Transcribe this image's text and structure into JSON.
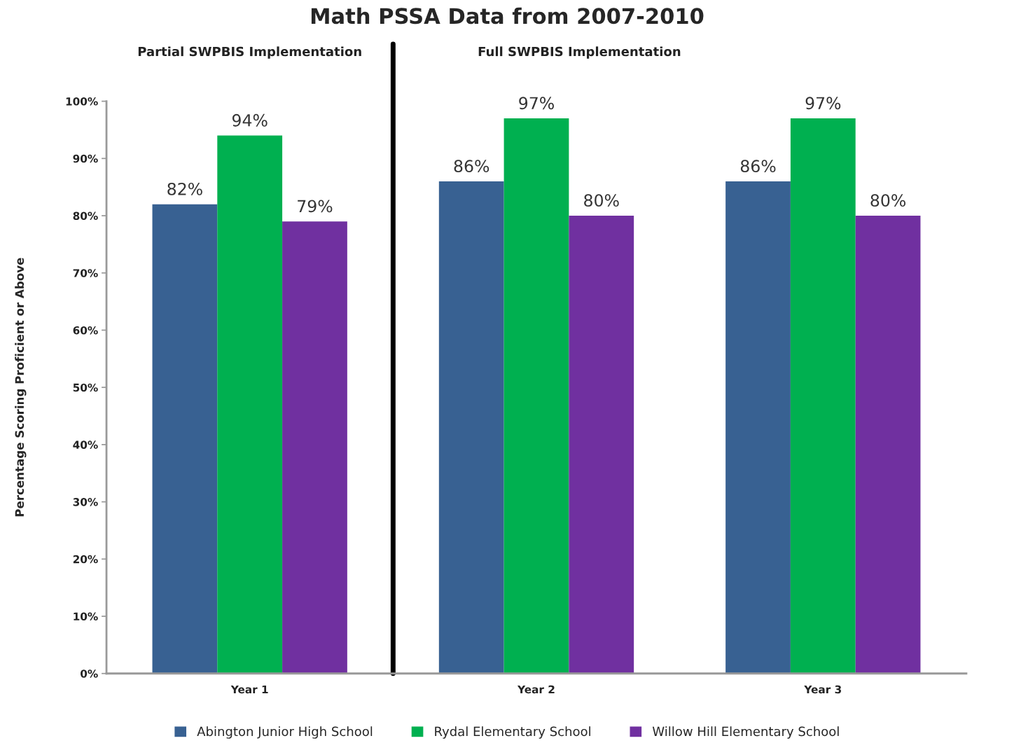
{
  "chart_data": {
    "type": "bar",
    "title": "Math PSSA Data from 2007-2010",
    "ylabel": "Percentage Scoring Proficient or Above",
    "categories": [
      "Year 1",
      "Year 2",
      "Year 3"
    ],
    "series": [
      {
        "name": "Abington Junior High School",
        "color": "#386192",
        "values": [
          82,
          86,
          86
        ],
        "value_labels": [
          "82%",
          "86%",
          "86%"
        ]
      },
      {
        "name": "Rydal Elementary School",
        "color": "#00b050",
        "values": [
          94,
          97,
          97
        ],
        "value_labels": [
          "94%",
          "97%",
          "97%"
        ]
      },
      {
        "name": "Willow Hill Elementary School",
        "color": "#7030a0",
        "values": [
          79,
          80,
          80
        ],
        "value_labels": [
          "79%",
          "80%",
          "80%"
        ]
      }
    ],
    "ylim": [
      0,
      100
    ],
    "yticks": [
      {
        "value": 0,
        "label": "0%"
      },
      {
        "value": 10,
        "label": "10%"
      },
      {
        "value": 20,
        "label": "20%"
      },
      {
        "value": 30,
        "label": "30%"
      },
      {
        "value": 40,
        "label": "40%"
      },
      {
        "value": 50,
        "label": "50%"
      },
      {
        "value": 60,
        "label": "60%"
      },
      {
        "value": 70,
        "label": "70%"
      },
      {
        "value": 80,
        "label": "80%"
      },
      {
        "value": 90,
        "label": "90%"
      },
      {
        "value": 100,
        "label": "100%"
      }
    ],
    "annotations": [
      "Partial SWPBIS Implementation",
      "Full SWPBIS Implementation"
    ],
    "legend": "bottom"
  }
}
